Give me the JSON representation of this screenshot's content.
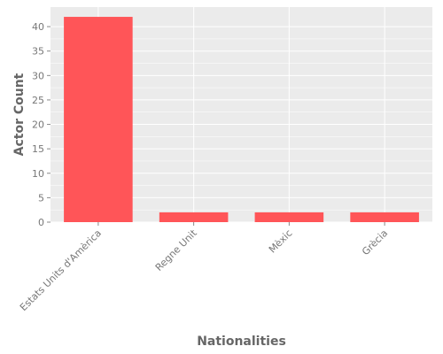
{
  "chart_data": {
    "type": "bar",
    "categories": [
      "Estats Units d'Amèrica",
      "Regne Unit",
      "Mèxic",
      "Grècia"
    ],
    "values": [
      42,
      2,
      2,
      2
    ],
    "title": "",
    "xlabel": "Nationalities",
    "ylabel": "Actor Count",
    "ylim": [
      0,
      44
    ],
    "yticks": [
      0,
      5,
      10,
      15,
      20,
      25,
      30,
      35,
      40
    ],
    "grid": true,
    "colors": {
      "bar": "#ff5558",
      "panel_background": "#ebebeb",
      "grid": "#ffffff"
    }
  }
}
